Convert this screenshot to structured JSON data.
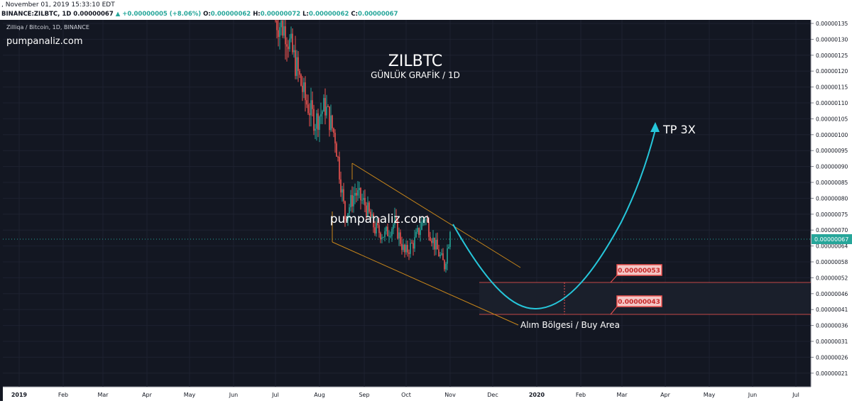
{
  "header": {
    "datetime": ", November 01, 2019 15:33:10 EDT",
    "symbol": "BINANCE:ZILBTC, 1D",
    "last": "0.00000067",
    "change": "+0.00000005 (+8.06%)",
    "o_label": "O:",
    "o": "0.00000062",
    "h_label": "H:",
    "h": "0.00000072",
    "l_label": "L:",
    "l": "0.00000062",
    "c_label": "C:",
    "c": "0.00000067"
  },
  "legend": "Zilliqa / Bitcoin, 1D, BINANCE",
  "watermark_top": "pumpanaliz.com",
  "watermark_center": "pumpanaliz.com",
  "title": "ZILBTC",
  "subtitle": "GÜNLÜK GRAFİK / 1D",
  "annotations": {
    "target": "TP 3X",
    "buy_area": "Alım Bölgesi / Buy Area",
    "upper_level": "0.00000053",
    "lower_level": "0.00000043",
    "current_price": "0.00000067"
  },
  "colors": {
    "background": "#131722",
    "up": "#26a69a",
    "down": "#ef5350",
    "arrow": "#26c6da",
    "channel": "#c8861a",
    "level_line": "#ef5350",
    "axis_text": "#131722"
  },
  "chart_data": {
    "type": "candlestick",
    "title": "ZILBTC",
    "x_ticks": [
      "2019",
      "Feb",
      "Mar",
      "Apr",
      "May",
      "Jun",
      "Jul",
      "Aug",
      "Sep",
      "Oct",
      "Nov",
      "Dec",
      "2020",
      "Feb",
      "Mar",
      "Apr",
      "May",
      "Jun",
      "Jul"
    ],
    "y_ticks": [
      "0.00000135",
      "0.00000130",
      "0.00000125",
      "0.00000120",
      "0.00000115",
      "0.00000110",
      "0.00000105",
      "0.00000100",
      "0.00000095",
      "0.00000090",
      "0.00000085",
      "0.00000080",
      "0.00000075",
      "0.00000070",
      "0.00000064",
      "0.00000058",
      "0.00000052",
      "0.00000046",
      "0.00000041",
      "0.00000036",
      "0.00000031",
      "0.00000026",
      "0.00000021"
    ],
    "last_price": 6.7e-07,
    "levels": [
      5.3e-07,
      4.3e-07
    ],
    "series": [
      {
        "x": "2019-07-01",
        "close": 1.36e-06
      },
      {
        "x": "2019-07-08",
        "close": 1.33e-06
      },
      {
        "x": "2019-07-15",
        "close": 1.22e-06
      },
      {
        "x": "2019-07-22",
        "close": 1.1e-06
      },
      {
        "x": "2019-07-29",
        "close": 1.03e-06
      },
      {
        "x": "2019-08-05",
        "close": 1.08e-06
      },
      {
        "x": "2019-08-12",
        "close": 9.8e-07
      },
      {
        "x": "2019-08-19",
        "close": 7.2e-07
      },
      {
        "x": "2019-08-26",
        "close": 8e-07
      },
      {
        "x": "2019-09-02",
        "close": 7.6e-07
      },
      {
        "x": "2019-09-09",
        "close": 6.8e-07
      },
      {
        "x": "2019-09-16",
        "close": 6.6e-07
      },
      {
        "x": "2019-09-23",
        "close": 7e-07
      },
      {
        "x": "2019-09-30",
        "close": 6e-07
      },
      {
        "x": "2019-10-07",
        "close": 6.4e-07
      },
      {
        "x": "2019-10-14",
        "close": 7.2e-07
      },
      {
        "x": "2019-10-21",
        "close": 6.3e-07
      },
      {
        "x": "2019-10-28",
        "close": 5.6e-07
      },
      {
        "x": "2019-11-01",
        "close": 6.7e-07
      }
    ]
  }
}
